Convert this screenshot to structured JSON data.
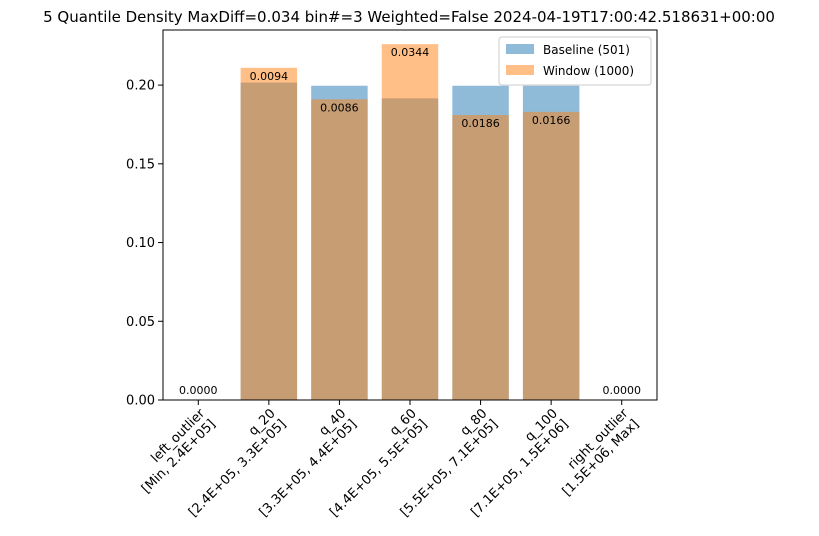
{
  "chart_data": {
    "type": "bar",
    "title": "5 Quantile Density MaxDiff=0.034 bin#=3 Weighted=False 2024-04-19T17:00:42.518631+00:00",
    "xlabel": "",
    "ylabel": "",
    "categories": [
      [
        "left_outlier",
        "[Min, 2.4E+05]"
      ],
      [
        "q_20",
        "[2.4E+05, 3.3E+05]"
      ],
      [
        "q_40",
        "[3.3E+05, 4.4E+05]"
      ],
      [
        "q_60",
        "[4.4E+05, 5.5E+05]"
      ],
      [
        "q_80",
        "[5.5E+05, 7.1E+05]"
      ],
      [
        "q_100",
        "[7.1E+05, 1.5E+06]"
      ],
      [
        "right_outlier",
        "[1.5E+06, Max]"
      ]
    ],
    "ylim": [
      0,
      0.235
    ],
    "yticks": [
      "0.00",
      "0.05",
      "0.10",
      "0.15",
      "0.20"
    ],
    "series": [
      {
        "name": "Baseline (501)",
        "color": "#1f77b4",
        "alpha": 0.5,
        "values": [
          0,
          0.2016,
          0.1996,
          0.1916,
          0.1996,
          0.1996,
          0
        ]
      },
      {
        "name": "Window (1000)",
        "color": "#ff7f0e",
        "alpha": 0.5,
        "values": [
          0,
          0.211,
          0.191,
          0.226,
          0.181,
          0.183,
          0
        ]
      }
    ],
    "bar_labels": [
      "0.0000",
      "0.0094",
      "0.0086",
      "0.0344",
      "0.0186",
      "0.0166",
      "0.0000"
    ],
    "legend": {
      "position": "top-right"
    },
    "grid": false
  }
}
